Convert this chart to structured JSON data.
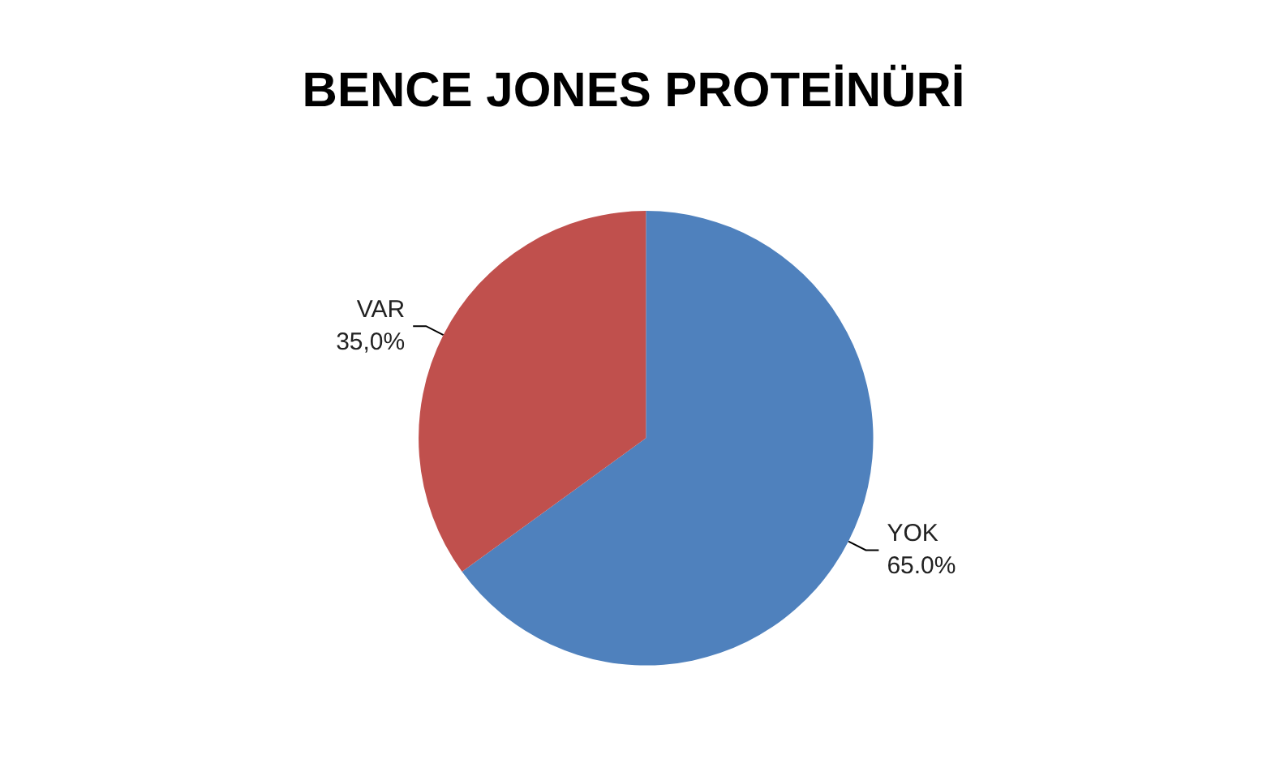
{
  "chart_data": {
    "type": "pie",
    "title": "BENCE JONES PROTEİNÜRİ",
    "categories": [
      "YOK",
      "VAR"
    ],
    "values": [
      65,
      35
    ],
    "colors": [
      "#4f81bd",
      "#c0504d"
    ],
    "value_labels": [
      "65.0%",
      "35,0%"
    ]
  }
}
